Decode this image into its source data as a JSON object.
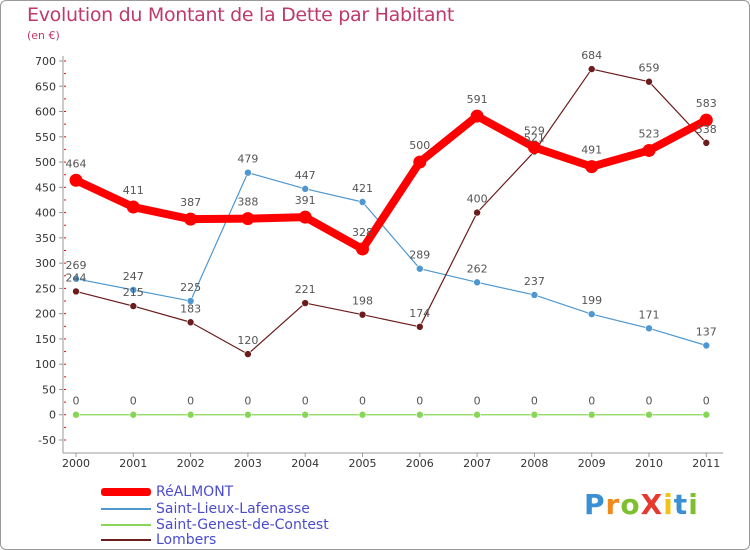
{
  "title": "Evolution du Montant de la Dette par Habitant",
  "subtitle": "(en €)",
  "logo": "ProXiti",
  "chart_data": {
    "type": "line",
    "x": [
      "2000",
      "2001",
      "2002",
      "2003",
      "2004",
      "2005",
      "2006",
      "2007",
      "2008",
      "2009",
      "2010",
      "2011"
    ],
    "ylim": [
      -50,
      700
    ],
    "yticks": [
      -50,
      0,
      50,
      100,
      150,
      200,
      250,
      300,
      350,
      400,
      450,
      500,
      550,
      600,
      650,
      700
    ],
    "grid": false,
    "legend_position": "bottom-left",
    "series": [
      {
        "name": "RéALMONT",
        "color": "#ff0000",
        "values": [
          464,
          411,
          387,
          388,
          391,
          328,
          500,
          591,
          529,
          491,
          523,
          583
        ]
      },
      {
        "name": "Saint-Lieux-Lafenasse",
        "color": "#4f97cf",
        "values": [
          269,
          247,
          225,
          479,
          447,
          421,
          289,
          262,
          237,
          199,
          171,
          137
        ]
      },
      {
        "name": "Saint-Genest-de-Contest",
        "color": "#88d657",
        "values": [
          0,
          0,
          0,
          0,
          0,
          0,
          0,
          0,
          0,
          0,
          0,
          0
        ]
      },
      {
        "name": "Lombers",
        "color": "#6b1c1c",
        "values": [
          244,
          215,
          183,
          120,
          221,
          198,
          174,
          400,
          521,
          684,
          659,
          538
        ]
      }
    ]
  }
}
